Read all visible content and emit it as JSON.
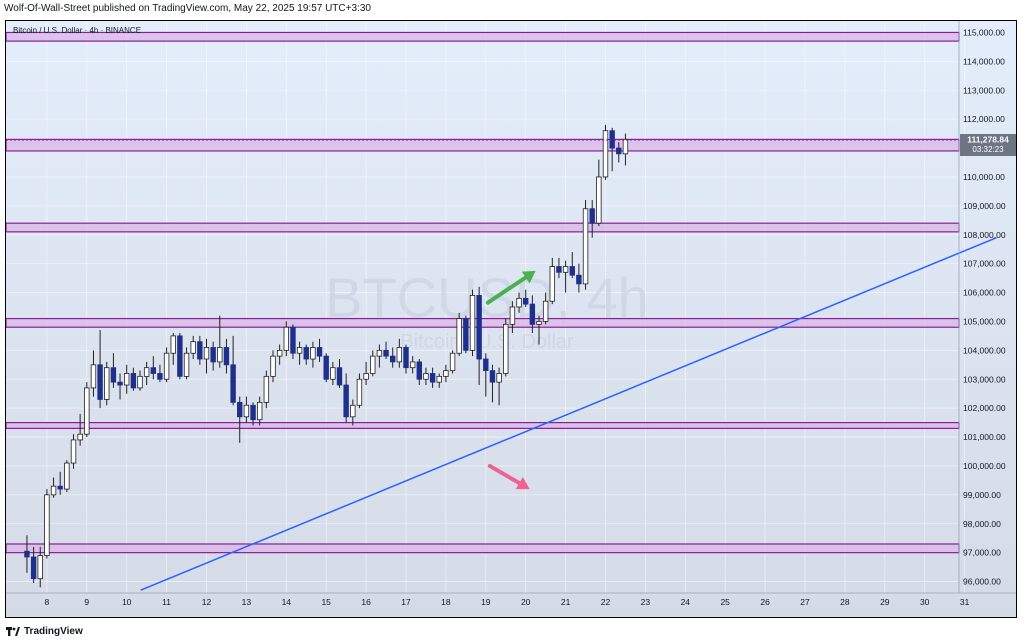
{
  "header": {
    "text": "Wolf-Of-Wall-Street published on TradingView.com, May 22, 2025 19:57 UTC+3:30"
  },
  "footer": {
    "brand": "TradingView",
    "logo_icon": "tradingview-logo-icon"
  },
  "colors": {
    "bg_top": "#e3edfb",
    "bg_bottom": "#d5dbe6",
    "zone_fill": "#d8b7e6",
    "zone_border": "#8e1b9c",
    "bull": "#ffffff",
    "bear": "#1e2f8c",
    "wick": "#222222",
    "trend": "#2962ff",
    "arrow_up": "#4caf50",
    "arrow_down": "#f06292",
    "price_tag": "#6d7582"
  },
  "chart_data": {
    "type": "candlestick",
    "title": "Bitcoin / U.S. Dollar · 4h · BINANCE",
    "watermark_symbol": "BTCUSD, 4h",
    "watermark_name": "Bitcoin / U.S. Dollar",
    "x_ticks": [
      "8",
      "9",
      "10",
      "11",
      "12",
      "13",
      "14",
      "15",
      "16",
      "17",
      "18",
      "19",
      "20",
      "21",
      "22",
      "23",
      "24",
      "25",
      "26",
      "27",
      "28",
      "29",
      "30",
      "31"
    ],
    "y_ticks": [
      "96,000.00",
      "97,000.00",
      "98,000.00",
      "99,000.00",
      "100,000.00",
      "101,000.00",
      "102,000.00",
      "103,000.00",
      "104,000.00",
      "105,000.00",
      "106,000.00",
      "107,000.00",
      "108,000.00",
      "109,000.00",
      "110,000.00",
      "111,000.00",
      "112,000.00",
      "113,000.00",
      "114,000.00",
      "115,000.00"
    ],
    "ylim": [
      95500,
      116500
    ],
    "last_price": "111,278.84",
    "countdown": "03:32:23",
    "zones": [
      {
        "low": 114700,
        "high": 115000
      },
      {
        "low": 110900,
        "high": 111300
      },
      {
        "low": 108100,
        "high": 108400
      },
      {
        "low": 104800,
        "high": 105100
      },
      {
        "low": 101300,
        "high": 101500
      },
      {
        "low": 97000,
        "high": 97300
      }
    ],
    "trendline": [
      {
        "day": 10.35,
        "price": 95700
      },
      {
        "day": 31.8,
        "price": 107900
      }
    ],
    "arrow_up": {
      "from": [
        19.05,
        105.65
      ],
      "to": [
        20.25,
        106.75
      ]
    },
    "arrow_down": {
      "from": [
        19.1,
        100.0
      ],
      "to": [
        20.1,
        99.2
      ]
    },
    "candles": [
      {
        "t": 7.5,
        "o": 97050,
        "h": 97600,
        "l": 96300,
        "c": 96850
      },
      {
        "t": 7.667,
        "o": 96850,
        "h": 97200,
        "l": 95950,
        "c": 96100
      },
      {
        "t": 7.833,
        "o": 96100,
        "h": 97200,
        "l": 95800,
        "c": 96900
      },
      {
        "t": 8.0,
        "o": 96900,
        "h": 99200,
        "l": 96800,
        "c": 99000
      },
      {
        "t": 8.167,
        "o": 99000,
        "h": 99600,
        "l": 98900,
        "c": 99300
      },
      {
        "t": 8.333,
        "o": 99300,
        "h": 99800,
        "l": 99000,
        "c": 99200
      },
      {
        "t": 8.5,
        "o": 99200,
        "h": 100200,
        "l": 99100,
        "c": 100100
      },
      {
        "t": 8.667,
        "o": 100100,
        "h": 101100,
        "l": 99900,
        "c": 100900
      },
      {
        "t": 8.833,
        "o": 100900,
        "h": 101800,
        "l": 100700,
        "c": 101100
      },
      {
        "t": 9.0,
        "o": 101100,
        "h": 102900,
        "l": 101000,
        "c": 102700
      },
      {
        "t": 9.167,
        "o": 102700,
        "h": 104000,
        "l": 102400,
        "c": 103500
      },
      {
        "t": 9.333,
        "o": 103500,
        "h": 104700,
        "l": 102000,
        "c": 102300
      },
      {
        "t": 9.5,
        "o": 102300,
        "h": 103600,
        "l": 102100,
        "c": 103400
      },
      {
        "t": 9.667,
        "o": 103400,
        "h": 103900,
        "l": 102700,
        "c": 102900
      },
      {
        "t": 9.833,
        "o": 102900,
        "h": 103200,
        "l": 102300,
        "c": 102800
      },
      {
        "t": 10.0,
        "o": 102800,
        "h": 103500,
        "l": 102500,
        "c": 103200
      },
      {
        "t": 10.167,
        "o": 103200,
        "h": 103400,
        "l": 102600,
        "c": 102700
      },
      {
        "t": 10.333,
        "o": 102700,
        "h": 103300,
        "l": 102600,
        "c": 103100
      },
      {
        "t": 10.5,
        "o": 103100,
        "h": 103600,
        "l": 102800,
        "c": 103400
      },
      {
        "t": 10.667,
        "o": 103400,
        "h": 103800,
        "l": 103000,
        "c": 103200
      },
      {
        "t": 10.833,
        "o": 103200,
        "h": 103500,
        "l": 102900,
        "c": 103000
      },
      {
        "t": 11.0,
        "o": 103000,
        "h": 104100,
        "l": 102900,
        "c": 103900
      },
      {
        "t": 11.167,
        "o": 103900,
        "h": 104600,
        "l": 103500,
        "c": 104500
      },
      {
        "t": 11.333,
        "o": 104500,
        "h": 104600,
        "l": 103000,
        "c": 103100
      },
      {
        "t": 11.5,
        "o": 103100,
        "h": 104100,
        "l": 103000,
        "c": 103900
      },
      {
        "t": 11.667,
        "o": 103900,
        "h": 104500,
        "l": 103700,
        "c": 104300
      },
      {
        "t": 11.833,
        "o": 104300,
        "h": 104500,
        "l": 103500,
        "c": 103700
      },
      {
        "t": 12.0,
        "o": 103700,
        "h": 104400,
        "l": 103200,
        "c": 104100
      },
      {
        "t": 12.167,
        "o": 104100,
        "h": 104300,
        "l": 103300,
        "c": 103600
      },
      {
        "t": 12.333,
        "o": 103600,
        "h": 105200,
        "l": 103400,
        "c": 104100
      },
      {
        "t": 12.5,
        "o": 104100,
        "h": 104400,
        "l": 103200,
        "c": 103500
      },
      {
        "t": 12.667,
        "o": 103500,
        "h": 104500,
        "l": 102100,
        "c": 102200
      },
      {
        "t": 12.833,
        "o": 102200,
        "h": 102400,
        "l": 100800,
        "c": 101700
      },
      {
        "t": 13.0,
        "o": 101700,
        "h": 102400,
        "l": 101500,
        "c": 102100
      },
      {
        "t": 13.167,
        "o": 102100,
        "h": 102200,
        "l": 101400,
        "c": 101600
      },
      {
        "t": 13.333,
        "o": 101600,
        "h": 102400,
        "l": 101400,
        "c": 102200
      },
      {
        "t": 13.5,
        "o": 102200,
        "h": 103300,
        "l": 102000,
        "c": 103100
      },
      {
        "t": 13.667,
        "o": 103100,
        "h": 104000,
        "l": 102900,
        "c": 103800
      },
      {
        "t": 13.833,
        "o": 103800,
        "h": 104200,
        "l": 103500,
        "c": 104000
      },
      {
        "t": 14.0,
        "o": 104000,
        "h": 105000,
        "l": 103800,
        "c": 104800
      },
      {
        "t": 14.167,
        "o": 104800,
        "h": 104900,
        "l": 103700,
        "c": 103900
      },
      {
        "t": 14.333,
        "o": 103900,
        "h": 104300,
        "l": 103500,
        "c": 104100
      },
      {
        "t": 14.5,
        "o": 104100,
        "h": 104200,
        "l": 103500,
        "c": 103700
      },
      {
        "t": 14.667,
        "o": 103700,
        "h": 104300,
        "l": 103400,
        "c": 104100
      },
      {
        "t": 14.833,
        "o": 104100,
        "h": 104400,
        "l": 103600,
        "c": 103800
      },
      {
        "t": 15.0,
        "o": 103800,
        "h": 103900,
        "l": 102900,
        "c": 103000
      },
      {
        "t": 15.167,
        "o": 103000,
        "h": 103600,
        "l": 102800,
        "c": 103400
      },
      {
        "t": 15.333,
        "o": 103400,
        "h": 103700,
        "l": 102700,
        "c": 102800
      },
      {
        "t": 15.5,
        "o": 102800,
        "h": 103200,
        "l": 101500,
        "c": 101700
      },
      {
        "t": 15.667,
        "o": 101700,
        "h": 102300,
        "l": 101400,
        "c": 102100
      },
      {
        "t": 15.833,
        "o": 102100,
        "h": 103200,
        "l": 102000,
        "c": 103000
      },
      {
        "t": 16.0,
        "o": 103000,
        "h": 103600,
        "l": 102800,
        "c": 103200
      },
      {
        "t": 16.167,
        "o": 103200,
        "h": 104000,
        "l": 103100,
        "c": 103800
      },
      {
        "t": 16.333,
        "o": 103800,
        "h": 104200,
        "l": 103400,
        "c": 104000
      },
      {
        "t": 16.5,
        "o": 104000,
        "h": 104300,
        "l": 103700,
        "c": 103800
      },
      {
        "t": 16.667,
        "o": 103800,
        "h": 104100,
        "l": 103400,
        "c": 103600
      },
      {
        "t": 16.833,
        "o": 103600,
        "h": 104400,
        "l": 103400,
        "c": 104100
      },
      {
        "t": 17.0,
        "o": 104100,
        "h": 104200,
        "l": 103200,
        "c": 103400
      },
      {
        "t": 17.167,
        "o": 103400,
        "h": 103800,
        "l": 103200,
        "c": 103600
      },
      {
        "t": 17.333,
        "o": 103600,
        "h": 103700,
        "l": 102800,
        "c": 103000
      },
      {
        "t": 17.5,
        "o": 103000,
        "h": 103400,
        "l": 102800,
        "c": 103200
      },
      {
        "t": 17.667,
        "o": 103200,
        "h": 103400,
        "l": 102700,
        "c": 102900
      },
      {
        "t": 17.833,
        "o": 102900,
        "h": 103200,
        "l": 102700,
        "c": 103100
      },
      {
        "t": 18.0,
        "o": 103100,
        "h": 103500,
        "l": 102900,
        "c": 103300
      },
      {
        "t": 18.167,
        "o": 103300,
        "h": 104000,
        "l": 103200,
        "c": 103900
      },
      {
        "t": 18.333,
        "o": 103900,
        "h": 105300,
        "l": 103800,
        "c": 105100
      },
      {
        "t": 18.5,
        "o": 105100,
        "h": 105200,
        "l": 103900,
        "c": 104000
      },
      {
        "t": 18.667,
        "o": 104000,
        "h": 106100,
        "l": 103800,
        "c": 105900
      },
      {
        "t": 18.833,
        "o": 105900,
        "h": 106200,
        "l": 102800,
        "c": 103700
      },
      {
        "t": 19.0,
        "o": 103700,
        "h": 103900,
        "l": 102400,
        "c": 103300
      },
      {
        "t": 19.167,
        "o": 103300,
        "h": 103500,
        "l": 102200,
        "c": 102900
      },
      {
        "t": 19.333,
        "o": 102900,
        "h": 103400,
        "l": 102100,
        "c": 103200
      },
      {
        "t": 19.5,
        "o": 103200,
        "h": 105100,
        "l": 103100,
        "c": 104900
      },
      {
        "t": 19.667,
        "o": 104900,
        "h": 105700,
        "l": 104600,
        "c": 105500
      },
      {
        "t": 19.833,
        "o": 105500,
        "h": 106000,
        "l": 105300,
        "c": 105800
      },
      {
        "t": 20.0,
        "o": 105800,
        "h": 106100,
        "l": 105500,
        "c": 105600
      },
      {
        "t": 20.167,
        "o": 105600,
        "h": 105900,
        "l": 104600,
        "c": 104900
      },
      {
        "t": 20.333,
        "o": 104900,
        "h": 105200,
        "l": 104200,
        "c": 105000
      },
      {
        "t": 20.5,
        "o": 105000,
        "h": 106000,
        "l": 104900,
        "c": 105700
      },
      {
        "t": 20.667,
        "o": 105700,
        "h": 107200,
        "l": 105600,
        "c": 106900
      },
      {
        "t": 20.833,
        "o": 106900,
        "h": 107200,
        "l": 106500,
        "c": 106700
      },
      {
        "t": 21.0,
        "o": 106700,
        "h": 107100,
        "l": 106000,
        "c": 106900
      },
      {
        "t": 21.167,
        "o": 106900,
        "h": 107400,
        "l": 106500,
        "c": 106600
      },
      {
        "t": 21.333,
        "o": 106600,
        "h": 107000,
        "l": 106000,
        "c": 106300
      },
      {
        "t": 21.5,
        "o": 106300,
        "h": 109200,
        "l": 106100,
        "c": 108900
      },
      {
        "t": 21.667,
        "o": 108900,
        "h": 109200,
        "l": 107900,
        "c": 108400
      },
      {
        "t": 21.833,
        "o": 108400,
        "h": 110600,
        "l": 108300,
        "c": 110000
      },
      {
        "t": 22.0,
        "o": 110000,
        "h": 111800,
        "l": 109900,
        "c": 111600
      },
      {
        "t": 22.167,
        "o": 111600,
        "h": 111700,
        "l": 110200,
        "c": 111000
      },
      {
        "t": 22.333,
        "o": 111000,
        "h": 111200,
        "l": 110500,
        "c": 110800
      },
      {
        "t": 22.5,
        "o": 110800,
        "h": 111500,
        "l": 110400,
        "c": 111300
      }
    ]
  }
}
